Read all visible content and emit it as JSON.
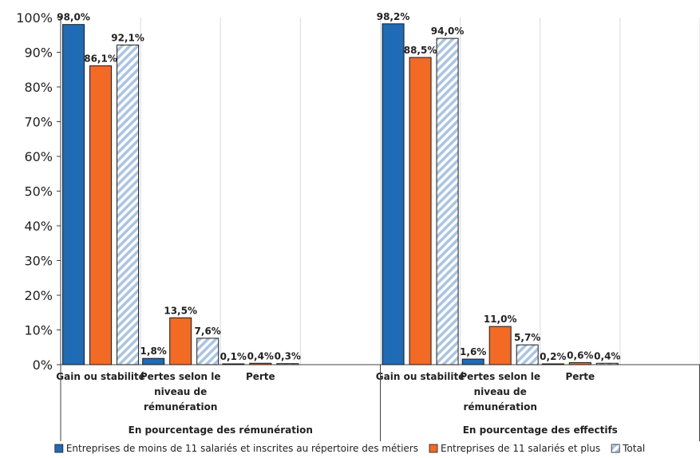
{
  "chart_data": {
    "type": "bar",
    "ylim": [
      0,
      100
    ],
    "yticks": [
      "0%",
      "10%",
      "20%",
      "30%",
      "40%",
      "50%",
      "60%",
      "70%",
      "80%",
      "90%",
      "100%"
    ],
    "groups": [
      {
        "label": "En pourcentage des rémunération",
        "categories": [
          {
            "lines": [
              "Gain ou stabilité"
            ],
            "values": [
              98.0,
              86.1,
              92.1
            ],
            "labels": [
              "98,0%",
              "86,1%",
              "92,1%"
            ]
          },
          {
            "lines": [
              "Pertes selon le",
              "niveau de",
              "rémunération"
            ],
            "values": [
              1.8,
              13.5,
              7.6
            ],
            "labels": [
              "1,8%",
              "13,5%",
              "7,6%"
            ]
          },
          {
            "lines": [
              "Perte"
            ],
            "values": [
              0.1,
              0.4,
              0.3
            ],
            "labels": [
              "0,1%",
              "0,4%",
              "0,3%"
            ]
          }
        ]
      },
      {
        "label": "En pourcentage des effectifs",
        "categories": [
          {
            "lines": [
              "Gain ou stabilité"
            ],
            "values": [
              98.2,
              88.5,
              94.0
            ],
            "labels": [
              "98,2%",
              "88,5%",
              "94,0%"
            ]
          },
          {
            "lines": [
              "Pertes selon le",
              "niveau de",
              "rémunération"
            ],
            "values": [
              1.6,
              11.0,
              5.7
            ],
            "labels": [
              "1,6%",
              "11,0%",
              "5,7%"
            ]
          },
          {
            "lines": [
              "Perte"
            ],
            "values": [
              0.2,
              0.6,
              0.4
            ],
            "labels": [
              "0,2%",
              "0,6%",
              "0,4%"
            ]
          }
        ]
      }
    ],
    "series": [
      {
        "name": "Entreprises de moins de 11 salariés et inscrites au répertoire des métiers",
        "color": "#1f6bb6",
        "pattern": "solid"
      },
      {
        "name": "Entreprises de 11 salariés et plus",
        "color": "#f26a24",
        "pattern": "solid"
      },
      {
        "name": "Total",
        "color": "#a9c4e4",
        "pattern": "diagonal-hatch"
      }
    ],
    "grid": true,
    "legend_position": "bottom"
  }
}
